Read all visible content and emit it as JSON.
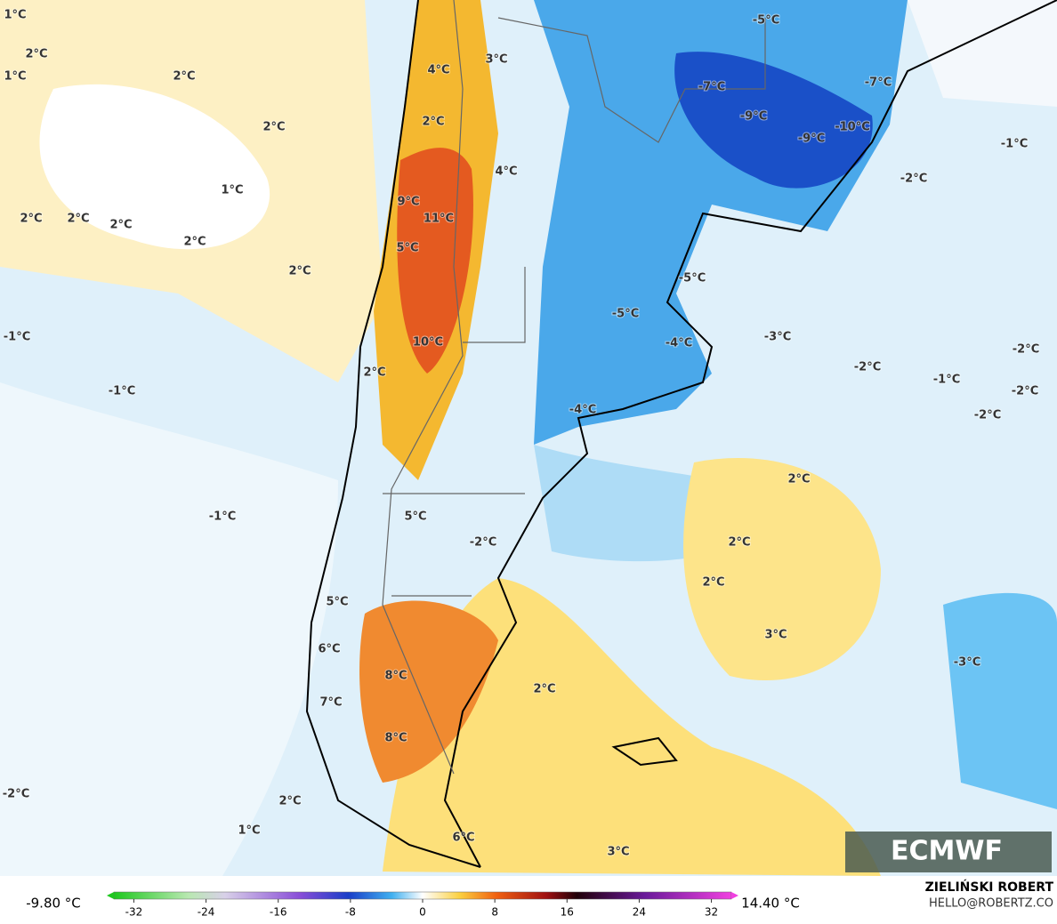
{
  "map_labels": [
    "1°C",
    "2°C",
    "1°C",
    "2°C",
    "2°C",
    "1°C",
    "2°C",
    "2°C",
    "2°C",
    "2°C",
    "2°C",
    "-1°C",
    "-1°C",
    "-1°C",
    "-2°C",
    "2°C",
    "1°C",
    "4°C",
    "3°C",
    "2°C",
    "4°C",
    "9°C",
    "11°C",
    "5°C",
    "10°C",
    "2°C",
    "5°C",
    "-2°C",
    "5°C",
    "6°C",
    "8°C",
    "7°C",
    "8°C",
    "6°C",
    "3°C",
    "2°C",
    "-5°C",
    "-7°C",
    "-9°C",
    "-7°C",
    "-9°C",
    "-10°C",
    "-1°C",
    "-2°C",
    "-5°C",
    "-5°C",
    "-4°C",
    "-3°C",
    "-2°C",
    "-1°C",
    "-2°C",
    "-2°C",
    "-2°C",
    "-4°C",
    "2°C",
    "2°C",
    "2°C",
    "3°C",
    "-3°C"
  ],
  "logo": "ECMWF",
  "colorbar": {
    "min_label": "-9.80 °C",
    "max_label": "14.40 °C",
    "range": [
      -35,
      35
    ],
    "ticks": [
      -32,
      -24,
      -16,
      -8,
      0,
      8,
      16,
      24,
      32
    ]
  },
  "credit": {
    "author": "ZIELIŃSKI ROBERT",
    "contact": "HELLO@ROBERTZ.CO"
  }
}
